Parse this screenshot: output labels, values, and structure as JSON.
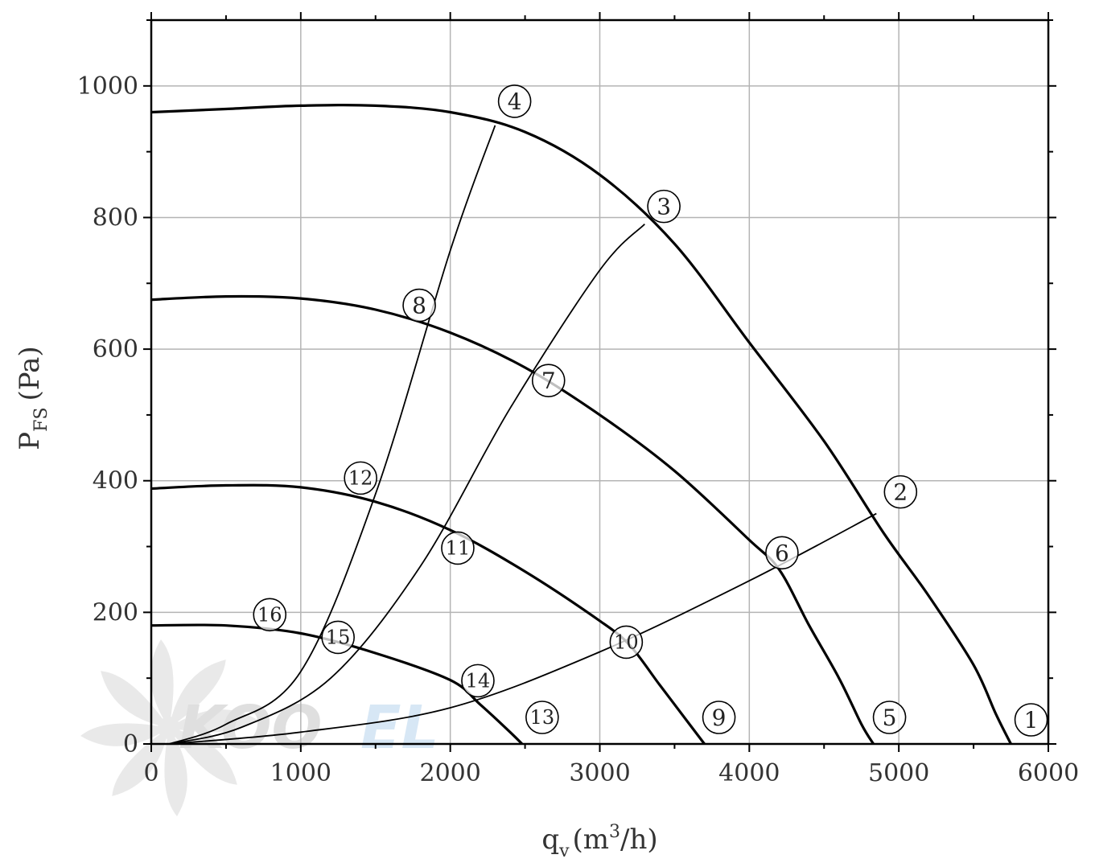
{
  "chart_data": {
    "type": "line",
    "title": "",
    "xlabel": {
      "main": "q",
      "sub": "v",
      "unit_open": "(m",
      "unit_sup": "3",
      "unit_close": "/h)"
    },
    "ylabel": {
      "main": "P",
      "sub": "FS",
      "unit": "(Pa)"
    },
    "xlim": [
      0,
      6000
    ],
    "ylim": [
      0,
      1100
    ],
    "x_ticks": [
      0,
      1000,
      2000,
      3000,
      4000,
      5000,
      6000
    ],
    "y_ticks": [
      0,
      200,
      400,
      600,
      800,
      1000
    ],
    "grid": true,
    "watermark": {
      "text_dark": "KOO",
      "text_light": "EL"
    },
    "fan_curves": [
      {
        "points": [
          [
            0,
            960
          ],
          [
            500,
            965
          ],
          [
            1000,
            970
          ],
          [
            1500,
            970
          ],
          [
            2000,
            960
          ],
          [
            2500,
            930
          ],
          [
            3000,
            865
          ],
          [
            3500,
            760
          ],
          [
            4000,
            610
          ],
          [
            4500,
            460
          ],
          [
            4900,
            320
          ],
          [
            5200,
            225
          ],
          [
            5500,
            120
          ],
          [
            5650,
            45
          ],
          [
            5750,
            0
          ]
        ]
      },
      {
        "points": [
          [
            0,
            675
          ],
          [
            500,
            680
          ],
          [
            1000,
            677
          ],
          [
            1500,
            660
          ],
          [
            2000,
            625
          ],
          [
            2500,
            572
          ],
          [
            3000,
            500
          ],
          [
            3500,
            415
          ],
          [
            4000,
            310
          ],
          [
            4200,
            265
          ],
          [
            4400,
            180
          ],
          [
            4600,
            100
          ],
          [
            4750,
            30
          ],
          [
            4830,
            0
          ]
        ]
      },
      {
        "points": [
          [
            0,
            388
          ],
          [
            500,
            393
          ],
          [
            1000,
            390
          ],
          [
            1500,
            368
          ],
          [
            2000,
            325
          ],
          [
            2500,
            262
          ],
          [
            3000,
            187
          ],
          [
            3200,
            150
          ],
          [
            3400,
            90
          ],
          [
            3600,
            30
          ],
          [
            3700,
            0
          ]
        ]
      },
      {
        "points": [
          [
            0,
            180
          ],
          [
            500,
            180
          ],
          [
            1000,
            168
          ],
          [
            1500,
            138
          ],
          [
            2000,
            97
          ],
          [
            2200,
            60
          ],
          [
            2400,
            18
          ],
          [
            2480,
            0
          ]
        ]
      }
    ],
    "system_curves": [
      {
        "points": [
          [
            120,
            0
          ],
          [
            500,
            30
          ],
          [
            1000,
            110
          ],
          [
            1500,
            380
          ],
          [
            2000,
            750
          ],
          [
            2300,
            940
          ]
        ]
      },
      {
        "points": [
          [
            120,
            0
          ],
          [
            600,
            25
          ],
          [
            1200,
            100
          ],
          [
            1800,
            270
          ],
          [
            2400,
            510
          ],
          [
            3000,
            720
          ],
          [
            3300,
            790
          ]
        ]
      },
      {
        "points": [
          [
            120,
            0
          ],
          [
            1000,
            18
          ],
          [
            2000,
            55
          ],
          [
            3000,
            140
          ],
          [
            4000,
            248
          ],
          [
            4850,
            350
          ]
        ]
      }
    ],
    "operating_points": [
      {
        "label": "1",
        "x": 5750,
        "y": 0
      },
      {
        "label": "2",
        "x": 4850,
        "y": 350
      },
      {
        "label": "3",
        "x": 3310,
        "y": 790
      },
      {
        "label": "4",
        "x": 2285,
        "y": 940
      },
      {
        "label": "5",
        "x": 4830,
        "y": 0
      },
      {
        "label": "6",
        "x": 4100,
        "y": 260
      },
      {
        "label": "7",
        "x": 2700,
        "y": 540
      },
      {
        "label": "8",
        "x": 1900,
        "y": 630
      },
      {
        "label": "9",
        "x": 3700,
        "y": 0
      },
      {
        "label": "10",
        "x": 3080,
        "y": 140
      },
      {
        "label": "11",
        "x": 2050,
        "y": 305
      },
      {
        "label": "12",
        "x": 1400,
        "y": 365
      },
      {
        "label": "13",
        "x": 2480,
        "y": 0
      },
      {
        "label": "14",
        "x": 2050,
        "y": 68
      },
      {
        "label": "15",
        "x": 1400,
        "y": 140
      },
      {
        "label": "16",
        "x": 900,
        "y": 172
      }
    ]
  }
}
